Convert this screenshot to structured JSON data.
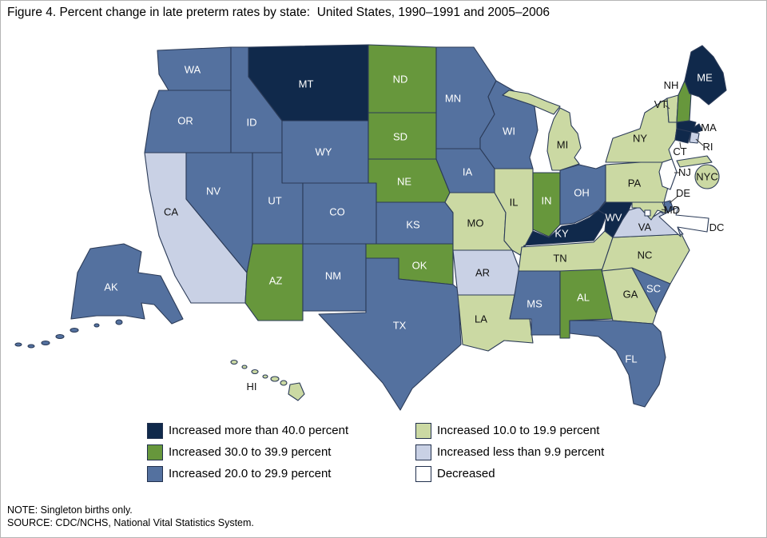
{
  "figure": {
    "title": "Figure 4. Percent change in late preterm rates by state:  United States, 1990–1991 and 2005–2006",
    "note": "NOTE: Singleton births only.",
    "source": "SOURCE: CDC/NCHS, National Vital Statistics System."
  },
  "chart_data": {
    "type": "choropleth",
    "title": "Percent change in late preterm rates by state, United States, 1990–1991 and 2005–2006",
    "legend_position": "bottom",
    "categories": [
      {
        "key": "inc40",
        "label": "Increased more than 40.0 percent",
        "color": "#10294b",
        "text_color": "#ffffff"
      },
      {
        "key": "inc30",
        "label": "Increased 30.0 to 39.9 percent",
        "color": "#67973c",
        "text_color": "#ffffff"
      },
      {
        "key": "inc20",
        "label": "Increased 20.0 to 29.9 percent",
        "color": "#54719f",
        "text_color": "#ffffff"
      },
      {
        "key": "inc10",
        "label": "Increased 10.0 to 19.9 percent",
        "color": "#cbd9a3",
        "text_color": "#111111"
      },
      {
        "key": "inc0",
        "label": "Increased less than 9.9 percent",
        "color": "#c9d1e5",
        "text_color": "#111111"
      },
      {
        "key": "dec",
        "label": "Decreased",
        "color": "#ffffff",
        "text_color": "#111111"
      }
    ],
    "states": [
      {
        "id": "WA",
        "label": "WA",
        "category": "inc20"
      },
      {
        "id": "OR",
        "label": "OR",
        "category": "inc20"
      },
      {
        "id": "CA",
        "label": "CA",
        "category": "inc0"
      },
      {
        "id": "NV",
        "label": "NV",
        "category": "inc20"
      },
      {
        "id": "ID",
        "label": "ID",
        "category": "inc20"
      },
      {
        "id": "MT",
        "label": "MT",
        "category": "inc40"
      },
      {
        "id": "WY",
        "label": "WY",
        "category": "inc20"
      },
      {
        "id": "UT",
        "label": "UT",
        "category": "inc20"
      },
      {
        "id": "CO",
        "label": "CO",
        "category": "inc20"
      },
      {
        "id": "AZ",
        "label": "AZ",
        "category": "inc30"
      },
      {
        "id": "NM",
        "label": "NM",
        "category": "inc20"
      },
      {
        "id": "ND",
        "label": "ND",
        "category": "inc30"
      },
      {
        "id": "SD",
        "label": "SD",
        "category": "inc30"
      },
      {
        "id": "NE",
        "label": "NE",
        "category": "inc30"
      },
      {
        "id": "KS",
        "label": "KS",
        "category": "inc20"
      },
      {
        "id": "OK",
        "label": "OK",
        "category": "inc30"
      },
      {
        "id": "TX",
        "label": "TX",
        "category": "inc20"
      },
      {
        "id": "MN",
        "label": "MN",
        "category": "inc20"
      },
      {
        "id": "IA",
        "label": "IA",
        "category": "inc20"
      },
      {
        "id": "MO",
        "label": "MO",
        "category": "inc10"
      },
      {
        "id": "AR",
        "label": "AR",
        "category": "inc0"
      },
      {
        "id": "LA",
        "label": "LA",
        "category": "inc10"
      },
      {
        "id": "WI",
        "label": "WI",
        "category": "inc20"
      },
      {
        "id": "IL",
        "label": "IL",
        "category": "inc10"
      },
      {
        "id": "IN",
        "label": "IN",
        "category": "inc30"
      },
      {
        "id": "OH",
        "label": "OH",
        "category": "inc20"
      },
      {
        "id": "MI",
        "label": "MI",
        "category": "inc10"
      },
      {
        "id": "KY",
        "label": "KY",
        "category": "inc40"
      },
      {
        "id": "TN",
        "label": "TN",
        "category": "inc10"
      },
      {
        "id": "MS",
        "label": "MS",
        "category": "inc20"
      },
      {
        "id": "AL",
        "label": "AL",
        "category": "inc30"
      },
      {
        "id": "GA",
        "label": "GA",
        "category": "inc10"
      },
      {
        "id": "FL",
        "label": "FL",
        "category": "inc20"
      },
      {
        "id": "SC",
        "label": "SC",
        "category": "inc20"
      },
      {
        "id": "NC",
        "label": "NC",
        "category": "inc10"
      },
      {
        "id": "VA",
        "label": "VA",
        "category": "inc0"
      },
      {
        "id": "WV",
        "label": "WV",
        "category": "inc40"
      },
      {
        "id": "PA",
        "label": "PA",
        "category": "inc10"
      },
      {
        "id": "NY",
        "label": "NY",
        "category": "inc10"
      },
      {
        "id": "NJ",
        "label": "NJ",
        "category": "dec"
      },
      {
        "id": "DE",
        "label": "DE",
        "category": "inc20"
      },
      {
        "id": "MD",
        "label": "MD",
        "category": "inc10"
      },
      {
        "id": "VT",
        "label": "VT",
        "category": "inc10"
      },
      {
        "id": "NH",
        "label": "NH",
        "category": "inc30"
      },
      {
        "id": "ME",
        "label": "ME",
        "category": "inc40"
      },
      {
        "id": "MA",
        "label": "MA",
        "category": "inc40"
      },
      {
        "id": "CT",
        "label": "CT",
        "category": "inc40"
      },
      {
        "id": "RI",
        "label": "RI",
        "category": "inc0"
      },
      {
        "id": "AK",
        "label": "AK",
        "category": "inc20"
      },
      {
        "id": "HI",
        "label": "HI",
        "category": "inc10"
      },
      {
        "id": "NYC",
        "label": "NYC",
        "category": "inc10"
      },
      {
        "id": "DC",
        "label": "DC",
        "category": "dec"
      }
    ]
  }
}
